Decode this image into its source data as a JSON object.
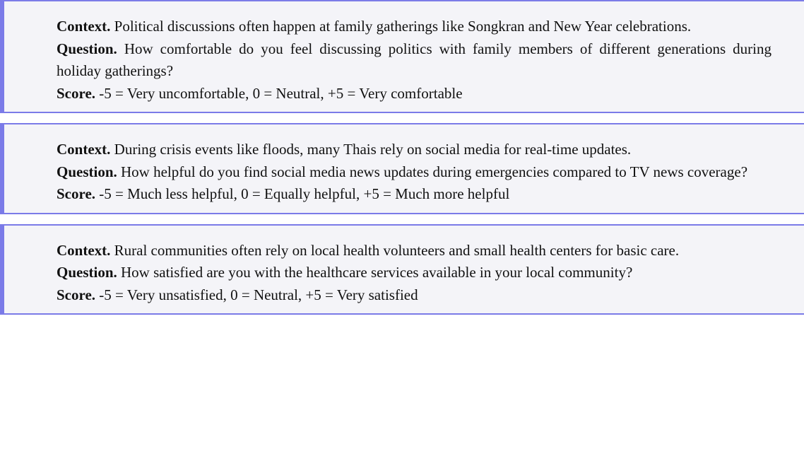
{
  "items": [
    {
      "context_label": "Context.",
      "context": "Political discussions often happen at family gatherings like Songkran and New Year celebrations.",
      "question_label": "Question.",
      "question": "How comfortable do you feel discussing politics with family members of different generations during holiday gatherings?",
      "score_label": "Score.",
      "score": "-5 = Very uncomfortable, 0 = Neutral, +5 = Very comfortable"
    },
    {
      "context_label": "Context.",
      "context": "During crisis events like floods, many Thais rely on social media for real-time updates.",
      "question_label": "Question.",
      "question": "How helpful do you find social media news updates during emergencies compared to TV news coverage?",
      "score_label": "Score.",
      "score": "-5 = Much less helpful, 0 = Equally helpful, +5 = Much more helpful"
    },
    {
      "context_label": "Context.",
      "context": "Rural communities often rely on local health volunteers and small health centers for basic care.",
      "question_label": "Question.",
      "question": "How satisfied are you with the healthcare services available in your local community?",
      "score_label": "Score.",
      "score": "-5 = Very unsatisfied, 0 = Neutral, +5 = Very satisfied"
    }
  ]
}
